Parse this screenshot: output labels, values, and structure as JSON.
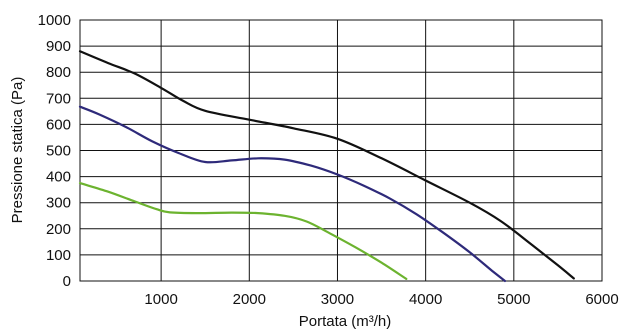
{
  "chart_data": {
    "type": "line",
    "title": "",
    "xlabel": "Portata (m³/h)",
    "ylabel": "Pressione statica (Pa)",
    "xlim": [
      80,
      6000
    ],
    "ylim": [
      0,
      1000
    ],
    "x_ticks": [
      1000,
      2000,
      3000,
      4000,
      5000,
      6000
    ],
    "x_tick_labels": [
      "1000",
      "2000",
      "3000",
      "4000",
      "5000",
      "6000"
    ],
    "y_ticks": [
      0,
      100,
      200,
      300,
      400,
      500,
      600,
      700,
      800,
      900,
      1000
    ],
    "y_tick_labels": [
      "0",
      "100",
      "200",
      "300",
      "400",
      "500",
      "600",
      "700",
      "800",
      "900",
      "1000"
    ],
    "grid": true,
    "series": [
      {
        "color": "#111111",
        "points": [
          [
            80,
            880
          ],
          [
            400,
            835
          ],
          [
            700,
            795
          ],
          [
            1000,
            740
          ],
          [
            1250,
            690
          ],
          [
            1500,
            652
          ],
          [
            2000,
            618
          ],
          [
            2500,
            585
          ],
          [
            3000,
            545
          ],
          [
            3500,
            470
          ],
          [
            4000,
            385
          ],
          [
            4500,
            300
          ],
          [
            4850,
            230
          ],
          [
            5200,
            140
          ],
          [
            5500,
            60
          ],
          [
            5680,
            10
          ]
        ]
      },
      {
        "color": "#2e2a7a",
        "points": [
          [
            80,
            668
          ],
          [
            300,
            638
          ],
          [
            600,
            590
          ],
          [
            900,
            535
          ],
          [
            1200,
            490
          ],
          [
            1500,
            456
          ],
          [
            1800,
            462
          ],
          [
            2100,
            470
          ],
          [
            2400,
            465
          ],
          [
            2700,
            442
          ],
          [
            3000,
            408
          ],
          [
            3300,
            365
          ],
          [
            3600,
            315
          ],
          [
            3900,
            255
          ],
          [
            4200,
            185
          ],
          [
            4500,
            110
          ],
          [
            4750,
            40
          ],
          [
            4900,
            0
          ]
        ]
      },
      {
        "color": "#6cb32f",
        "points": [
          [
            80,
            375
          ],
          [
            400,
            342
          ],
          [
            700,
            305
          ],
          [
            950,
            275
          ],
          [
            1100,
            263
          ],
          [
            1400,
            260
          ],
          [
            1800,
            262
          ],
          [
            2100,
            260
          ],
          [
            2400,
            250
          ],
          [
            2650,
            228
          ],
          [
            2900,
            185
          ],
          [
            3200,
            130
          ],
          [
            3500,
            70
          ],
          [
            3780,
            8
          ]
        ]
      }
    ]
  }
}
